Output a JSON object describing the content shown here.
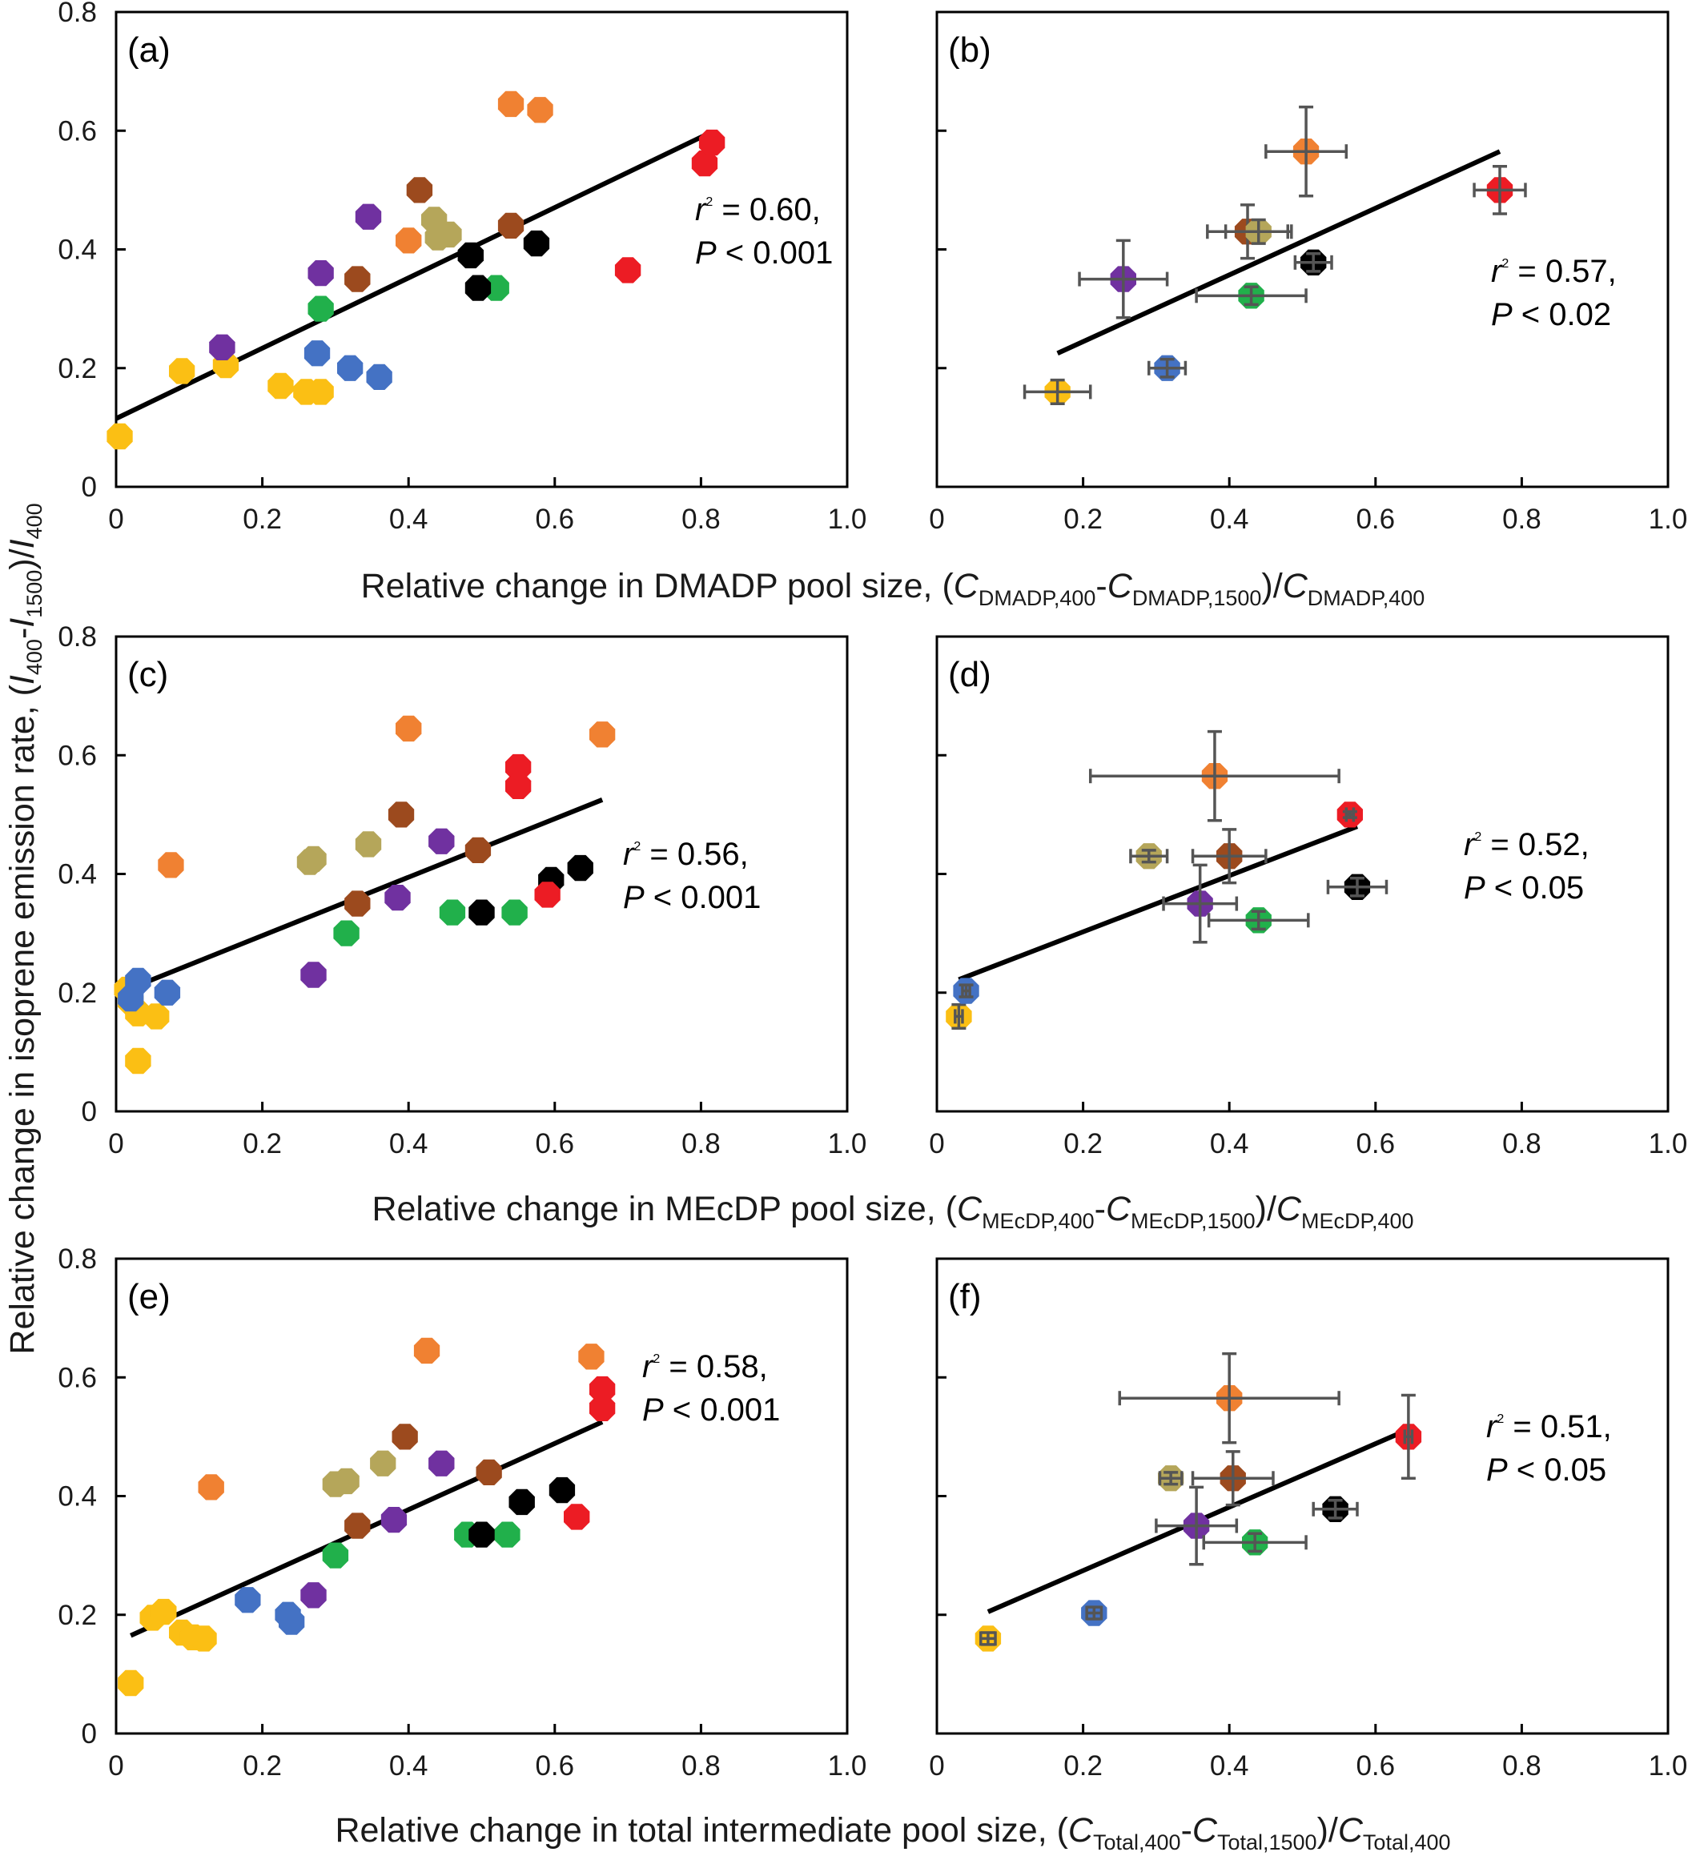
{
  "colors": {
    "yellow": "#fbbf14",
    "orange": "#f08132",
    "red": "#ec1c24",
    "brown": "#9c4a1e",
    "purple": "#7031a0",
    "olive": "#b5a65a",
    "black": "#000000",
    "green": "#21b04b",
    "blue": "#4472c4"
  },
  "y_axis_title": {
    "a": "Relative change in isoprene emission rate, (",
    "b": "I",
    "c": "400",
    "d": "-",
    "e": "I",
    "f": "1500",
    "g": ")/",
    "h": "I",
    "i": "400"
  },
  "x_axis_titles": [
    {
      "a": "Relative change in DMADP pool size, (",
      "b": "C",
      "c": "DMADP,400",
      "d": "-",
      "e": "C",
      "f": "DMADP,1500",
      "g": ")/",
      "h": "C",
      "i": "DMADP,400"
    },
    {
      "a": "Relative change in MEcDP pool size, (",
      "b": "C",
      "c": "MEcDP,400",
      "d": "-",
      "e": "C",
      "f": "MEcDP,1500",
      "g": ")/",
      "h": "C",
      "i": "MEcDP,400"
    },
    {
      "a": "Relative change in total intermediate pool size, (",
      "b": "C",
      "c": "Total,400",
      "d": "-",
      "e": "C",
      "f": "Total,1500",
      "g": ")/",
      "h": "C",
      "i": "Total,400"
    }
  ],
  "chart_data": [
    {
      "panel": "(a)",
      "type": "scatter",
      "xlim": [
        0,
        1.0
      ],
      "ylim": [
        0,
        0.8
      ],
      "xticks": [
        "0",
        "0.2",
        "0.4",
        "0.6",
        "0.8",
        "1.0"
      ],
      "yticks": [
        "0",
        "0.2",
        "0.4",
        "0.6",
        "0.8"
      ],
      "show_ytick_labels": true,
      "stat": {
        "r": "r",
        "sup": "2",
        "r_value": " = 0.60,",
        "p": "P",
        "p_value": " < 0.001"
      },
      "fit": {
        "x": [
          0.0,
          0.81
        ],
        "y": [
          0.115,
          0.595
        ]
      },
      "points": [
        {
          "c": "yellow",
          "x": 0.005,
          "y": 0.085
        },
        {
          "c": "yellow",
          "x": 0.09,
          "y": 0.195
        },
        {
          "c": "yellow",
          "x": 0.15,
          "y": 0.205
        },
        {
          "c": "yellow",
          "x": 0.225,
          "y": 0.17
        },
        {
          "c": "yellow",
          "x": 0.26,
          "y": 0.16
        },
        {
          "c": "yellow",
          "x": 0.28,
          "y": 0.16
        },
        {
          "c": "purple",
          "x": 0.145,
          "y": 0.235
        },
        {
          "c": "purple",
          "x": 0.28,
          "y": 0.36
        },
        {
          "c": "purple",
          "x": 0.345,
          "y": 0.455
        },
        {
          "c": "green",
          "x": 0.28,
          "y": 0.3
        },
        {
          "c": "green",
          "x": 0.52,
          "y": 0.335
        },
        {
          "c": "blue",
          "x": 0.275,
          "y": 0.225
        },
        {
          "c": "blue",
          "x": 0.32,
          "y": 0.2
        },
        {
          "c": "blue",
          "x": 0.36,
          "y": 0.185
        },
        {
          "c": "brown",
          "x": 0.33,
          "y": 0.35
        },
        {
          "c": "brown",
          "x": 0.415,
          "y": 0.5
        },
        {
          "c": "brown",
          "x": 0.54,
          "y": 0.44
        },
        {
          "c": "orange",
          "x": 0.4,
          "y": 0.415
        },
        {
          "c": "orange",
          "x": 0.54,
          "y": 0.645
        },
        {
          "c": "orange",
          "x": 0.58,
          "y": 0.635
        },
        {
          "c": "olive",
          "x": 0.435,
          "y": 0.45
        },
        {
          "c": "olive",
          "x": 0.44,
          "y": 0.42
        },
        {
          "c": "olive",
          "x": 0.455,
          "y": 0.425
        },
        {
          "c": "black",
          "x": 0.485,
          "y": 0.39
        },
        {
          "c": "black",
          "x": 0.495,
          "y": 0.335
        },
        {
          "c": "black",
          "x": 0.575,
          "y": 0.41
        },
        {
          "c": "red",
          "x": 0.7,
          "y": 0.365
        },
        {
          "c": "red",
          "x": 0.805,
          "y": 0.545
        },
        {
          "c": "red",
          "x": 0.815,
          "y": 0.58
        }
      ]
    },
    {
      "panel": "(b)",
      "type": "scatter",
      "xlim": [
        0,
        1.0
      ],
      "ylim": [
        0,
        0.8
      ],
      "xticks": [
        "0",
        "0.2",
        "0.4",
        "0.6",
        "0.8",
        "1.0"
      ],
      "yticks": [
        "0",
        "0.2",
        "0.4",
        "0.6",
        "0.8"
      ],
      "show_ytick_labels": false,
      "stat": {
        "r": "r",
        "sup": "2",
        "r_value": " = 0.57,",
        "p": "P",
        "p_value": " < 0.02"
      },
      "fit": {
        "x": [
          0.165,
          0.77
        ],
        "y": [
          0.225,
          0.565
        ]
      },
      "points": [
        {
          "c": "yellow",
          "x": 0.165,
          "y": 0.16,
          "xerr": 0.045,
          "yerr": 0.02
        },
        {
          "c": "blue",
          "x": 0.315,
          "y": 0.2,
          "xerr": 0.025,
          "yerr": 0.015
        },
        {
          "c": "purple",
          "x": 0.255,
          "y": 0.35,
          "xerr": 0.06,
          "yerr": 0.065
        },
        {
          "c": "green",
          "x": 0.43,
          "y": 0.322,
          "xerr": 0.075,
          "yerr": 0.015
        },
        {
          "c": "brown",
          "x": 0.425,
          "y": 0.43,
          "xerr": 0.055,
          "yerr": 0.045
        },
        {
          "c": "olive",
          "x": 0.44,
          "y": 0.43,
          "xerr": 0.045,
          "yerr": 0.02
        },
        {
          "c": "black",
          "x": 0.515,
          "y": 0.378,
          "xerr": 0.025,
          "yerr": 0.015
        },
        {
          "c": "orange",
          "x": 0.505,
          "y": 0.565,
          "xerr": 0.055,
          "yerr": 0.075
        },
        {
          "c": "red",
          "x": 0.77,
          "y": 0.5,
          "xerr": 0.035,
          "yerr": 0.04
        }
      ]
    },
    {
      "panel": "(c)",
      "type": "scatter",
      "xlim": [
        0,
        1.0
      ],
      "ylim": [
        0,
        0.8
      ],
      "xticks": [
        "0",
        "0.2",
        "0.4",
        "0.6",
        "0.8",
        "1.0"
      ],
      "yticks": [
        "0",
        "0.2",
        "0.4",
        "0.6",
        "0.8"
      ],
      "show_ytick_labels": true,
      "stat": {
        "r": "r",
        "sup": "2",
        "r_value": " = 0.56,",
        "p": "P",
        "p_value": " < 0.001"
      },
      "fit": {
        "x": [
          0.015,
          0.665
        ],
        "y": [
          0.205,
          0.525
        ]
      },
      "points": [
        {
          "c": "yellow",
          "x": 0.015,
          "y": 0.205
        },
        {
          "c": "yellow",
          "x": 0.02,
          "y": 0.185
        },
        {
          "c": "yellow",
          "x": 0.03,
          "y": 0.165
        },
        {
          "c": "yellow",
          "x": 0.055,
          "y": 0.16
        },
        {
          "c": "yellow",
          "x": 0.03,
          "y": 0.085
        },
        {
          "c": "blue",
          "x": 0.03,
          "y": 0.22
        },
        {
          "c": "blue",
          "x": 0.02,
          "y": 0.19
        },
        {
          "c": "blue",
          "x": 0.07,
          "y": 0.2
        },
        {
          "c": "orange",
          "x": 0.075,
          "y": 0.415
        },
        {
          "c": "orange",
          "x": 0.4,
          "y": 0.645
        },
        {
          "c": "orange",
          "x": 0.665,
          "y": 0.635
        },
        {
          "c": "olive",
          "x": 0.265,
          "y": 0.42
        },
        {
          "c": "olive",
          "x": 0.27,
          "y": 0.425
        },
        {
          "c": "olive",
          "x": 0.345,
          "y": 0.45
        },
        {
          "c": "purple",
          "x": 0.27,
          "y": 0.23
        },
        {
          "c": "purple",
          "x": 0.385,
          "y": 0.36
        },
        {
          "c": "purple",
          "x": 0.445,
          "y": 0.455
        },
        {
          "c": "green",
          "x": 0.315,
          "y": 0.3
        },
        {
          "c": "green",
          "x": 0.46,
          "y": 0.335
        },
        {
          "c": "green",
          "x": 0.545,
          "y": 0.335
        },
        {
          "c": "brown",
          "x": 0.33,
          "y": 0.35
        },
        {
          "c": "brown",
          "x": 0.39,
          "y": 0.5
        },
        {
          "c": "brown",
          "x": 0.495,
          "y": 0.44
        },
        {
          "c": "black",
          "x": 0.5,
          "y": 0.335
        },
        {
          "c": "black",
          "x": 0.595,
          "y": 0.39
        },
        {
          "c": "black",
          "x": 0.635,
          "y": 0.41
        },
        {
          "c": "red",
          "x": 0.55,
          "y": 0.58
        },
        {
          "c": "red",
          "x": 0.55,
          "y": 0.548
        },
        {
          "c": "red",
          "x": 0.59,
          "y": 0.365
        }
      ]
    },
    {
      "panel": "(d)",
      "type": "scatter",
      "xlim": [
        0,
        1.0
      ],
      "ylim": [
        0,
        0.8
      ],
      "xticks": [
        "0",
        "0.2",
        "0.4",
        "0.6",
        "0.8",
        "1.0"
      ],
      "yticks": [
        "0",
        "0.2",
        "0.4",
        "0.6",
        "0.8"
      ],
      "show_ytick_labels": false,
      "stat": {
        "r": "r",
        "sup": "2",
        "r_value": " = 0.52,",
        "p": "P",
        "p_value": " < 0.05"
      },
      "fit": {
        "x": [
          0.03,
          0.575
        ],
        "y": [
          0.222,
          0.48
        ]
      },
      "points": [
        {
          "c": "yellow",
          "x": 0.03,
          "y": 0.16,
          "xerr": 0.005,
          "yerr": 0.02
        },
        {
          "c": "blue",
          "x": 0.04,
          "y": 0.203,
          "xerr": 0.005,
          "yerr": 0.01
        },
        {
          "c": "olive",
          "x": 0.29,
          "y": 0.43,
          "xerr": 0.025,
          "yerr": 0.01
        },
        {
          "c": "purple",
          "x": 0.36,
          "y": 0.35,
          "xerr": 0.05,
          "yerr": 0.065
        },
        {
          "c": "orange",
          "x": 0.38,
          "y": 0.565,
          "xerr": 0.17,
          "yerr": 0.075
        },
        {
          "c": "brown",
          "x": 0.4,
          "y": 0.43,
          "xerr": 0.05,
          "yerr": 0.045
        },
        {
          "c": "green",
          "x": 0.44,
          "y": 0.322,
          "xerr": 0.068,
          "yerr": 0.015
        },
        {
          "c": "red",
          "x": 0.565,
          "y": 0.5,
          "xerr": 0.005,
          "yerr": 0.005
        },
        {
          "c": "black",
          "x": 0.575,
          "y": 0.378,
          "xerr": 0.04,
          "yerr": 0.015
        }
      ]
    },
    {
      "panel": "(e)",
      "type": "scatter",
      "xlim": [
        0,
        1.0
      ],
      "ylim": [
        0,
        0.8
      ],
      "xticks": [
        "0",
        "0.2",
        "0.4",
        "0.6",
        "0.8",
        "1.0"
      ],
      "yticks": [
        "0",
        "0.2",
        "0.4",
        "0.6",
        "0.8"
      ],
      "show_ytick_labels": true,
      "stat": {
        "r": "r",
        "sup": "2",
        "r_value": " = 0.58,",
        "p": "P",
        "p_value": " < 0.001"
      },
      "fit": {
        "x": [
          0.02,
          0.665
        ],
        "y": [
          0.165,
          0.525
        ]
      },
      "points": [
        {
          "c": "yellow",
          "x": 0.02,
          "y": 0.085
        },
        {
          "c": "yellow",
          "x": 0.05,
          "y": 0.195
        },
        {
          "c": "yellow",
          "x": 0.065,
          "y": 0.205
        },
        {
          "c": "yellow",
          "x": 0.09,
          "y": 0.17
        },
        {
          "c": "yellow",
          "x": 0.105,
          "y": 0.162
        },
        {
          "c": "yellow",
          "x": 0.12,
          "y": 0.16
        },
        {
          "c": "orange",
          "x": 0.13,
          "y": 0.415
        },
        {
          "c": "orange",
          "x": 0.425,
          "y": 0.645
        },
        {
          "c": "orange",
          "x": 0.65,
          "y": 0.635
        },
        {
          "c": "blue",
          "x": 0.18,
          "y": 0.225
        },
        {
          "c": "blue",
          "x": 0.235,
          "y": 0.2
        },
        {
          "c": "blue",
          "x": 0.24,
          "y": 0.188
        },
        {
          "c": "purple",
          "x": 0.27,
          "y": 0.233
        },
        {
          "c": "purple",
          "x": 0.38,
          "y": 0.36
        },
        {
          "c": "purple",
          "x": 0.445,
          "y": 0.455
        },
        {
          "c": "green",
          "x": 0.3,
          "y": 0.3
        },
        {
          "c": "green",
          "x": 0.48,
          "y": 0.335
        },
        {
          "c": "green",
          "x": 0.535,
          "y": 0.335
        },
        {
          "c": "olive",
          "x": 0.3,
          "y": 0.42
        },
        {
          "c": "olive",
          "x": 0.315,
          "y": 0.425
        },
        {
          "c": "olive",
          "x": 0.365,
          "y": 0.455
        },
        {
          "c": "brown",
          "x": 0.33,
          "y": 0.35
        },
        {
          "c": "brown",
          "x": 0.395,
          "y": 0.5
        },
        {
          "c": "brown",
          "x": 0.51,
          "y": 0.44
        },
        {
          "c": "black",
          "x": 0.5,
          "y": 0.335
        },
        {
          "c": "black",
          "x": 0.555,
          "y": 0.39
        },
        {
          "c": "black",
          "x": 0.61,
          "y": 0.41
        },
        {
          "c": "red",
          "x": 0.63,
          "y": 0.365
        },
        {
          "c": "red",
          "x": 0.665,
          "y": 0.548
        },
        {
          "c": "red",
          "x": 0.665,
          "y": 0.58
        }
      ]
    },
    {
      "panel": "(f)",
      "type": "scatter",
      "xlim": [
        0,
        1.0
      ],
      "ylim": [
        0,
        0.8
      ],
      "xticks": [
        "0",
        "0.2",
        "0.4",
        "0.6",
        "0.8",
        "1.0"
      ],
      "yticks": [
        "0",
        "0.2",
        "0.4",
        "0.6",
        "0.8"
      ],
      "show_ytick_labels": false,
      "stat": {
        "r": "r",
        "sup": "2",
        "r_value": " = 0.51,",
        "p": "P",
        "p_value": " < 0.05"
      },
      "fit": {
        "x": [
          0.07,
          0.65
        ],
        "y": [
          0.205,
          0.515
        ]
      },
      "points": [
        {
          "c": "yellow",
          "x": 0.07,
          "y": 0.16,
          "xerr": 0.01,
          "yerr": 0.01
        },
        {
          "c": "blue",
          "x": 0.215,
          "y": 0.203,
          "xerr": 0.01,
          "yerr": 0.01
        },
        {
          "c": "olive",
          "x": 0.32,
          "y": 0.43,
          "xerr": 0.015,
          "yerr": 0.01
        },
        {
          "c": "purple",
          "x": 0.355,
          "y": 0.35,
          "xerr": 0.055,
          "yerr": 0.065
        },
        {
          "c": "orange",
          "x": 0.4,
          "y": 0.565,
          "xerr": 0.15,
          "yerr": 0.075
        },
        {
          "c": "brown",
          "x": 0.405,
          "y": 0.43,
          "xerr": 0.055,
          "yerr": 0.045
        },
        {
          "c": "green",
          "x": 0.435,
          "y": 0.322,
          "xerr": 0.07,
          "yerr": 0.015
        },
        {
          "c": "black",
          "x": 0.545,
          "y": 0.378,
          "xerr": 0.03,
          "yerr": 0.015
        },
        {
          "c": "red",
          "x": 0.645,
          "y": 0.5,
          "xerr": 0.005,
          "yerr": 0.07
        }
      ]
    }
  ]
}
